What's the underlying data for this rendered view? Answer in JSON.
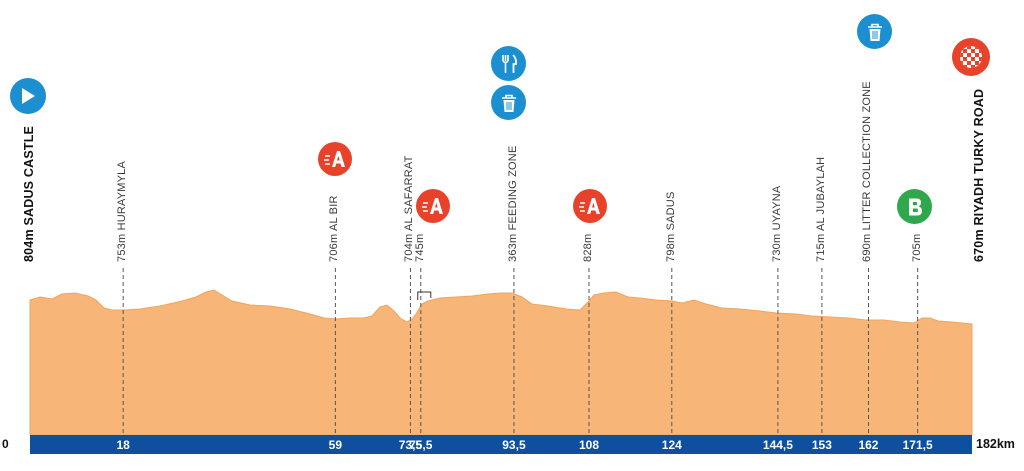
{
  "colors": {
    "terrain": "#f7b578",
    "terrain_edge": "#efa560",
    "bar": "#0f4fa0",
    "guide": "#555555",
    "blue_icon": "#1c8fd0",
    "sprint_icon": "#e8432a",
    "bonus_icon": "#2fa84b"
  },
  "axis": {
    "start_label": "0",
    "end_label": "182km"
  },
  "markers": [
    {
      "km": 0,
      "km_label": "",
      "alt": "804m",
      "place": "SADUS CASTLE",
      "strong": true
    },
    {
      "km": 18,
      "km_label": "18",
      "alt": "753m",
      "place": "HURAYMYLA"
    },
    {
      "km": 59,
      "km_label": "59",
      "alt": "706m",
      "place": "AL BIR"
    },
    {
      "km": 73.5,
      "km_label": "73,5",
      "alt": "704m",
      "place": "AL SAFARRAT"
    },
    {
      "km": 75.5,
      "km_label": "75,5",
      "alt": "745m",
      "place": ""
    },
    {
      "km": 93.5,
      "km_label": "93,5",
      "alt": "363m",
      "place": "FEEDING ZONE"
    },
    {
      "km": 108,
      "km_label": "108",
      "alt": "828m",
      "place": ""
    },
    {
      "km": 124,
      "km_label": "124",
      "alt": "798m",
      "place": "SADUS"
    },
    {
      "km": 144.5,
      "km_label": "144,5",
      "alt": "730m",
      "place": "UYAYNA"
    },
    {
      "km": 153,
      "km_label": "153",
      "alt": "715m",
      "place": "AL JUBAYLAH"
    },
    {
      "km": 162,
      "km_label": "162",
      "alt": "690m",
      "place": "LITTER COLLECTION ZONE"
    },
    {
      "km": 171.5,
      "km_label": "171,5",
      "alt": "705m",
      "place": ""
    },
    {
      "km": 182,
      "km_label": "",
      "alt": "670m",
      "place": "RIYADH TURKY ROAD",
      "strong": true
    }
  ],
  "icons": [
    {
      "name": "start-play-icon",
      "type": "start"
    },
    {
      "name": "sprint-a-icon",
      "type": "sprint",
      "letter": "A"
    },
    {
      "name": "sprint-a-icon",
      "type": "sprint",
      "letter": "A"
    },
    {
      "name": "feeding-fork-knife-icon",
      "type": "feed"
    },
    {
      "name": "litter-bin-icon",
      "type": "bin"
    },
    {
      "name": "sprint-a-icon",
      "type": "sprint",
      "letter": "A"
    },
    {
      "name": "litter-bin-icon",
      "type": "bin"
    },
    {
      "name": "bonus-b-icon",
      "type": "bonus",
      "letter": "B"
    },
    {
      "name": "finish-checkered-icon",
      "type": "finish"
    }
  ],
  "chart_data": {
    "type": "area",
    "xlabel": "",
    "ylabel": "",
    "xlim": [
      0,
      182
    ],
    "x": [
      0,
      18,
      59,
      73.5,
      75.5,
      93.5,
      108,
      124,
      144.5,
      153,
      162,
      171.5,
      182
    ],
    "y": [
      804,
      753,
      706,
      704,
      745,
      363,
      828,
      798,
      730,
      715,
      690,
      705,
      670
    ]
  }
}
